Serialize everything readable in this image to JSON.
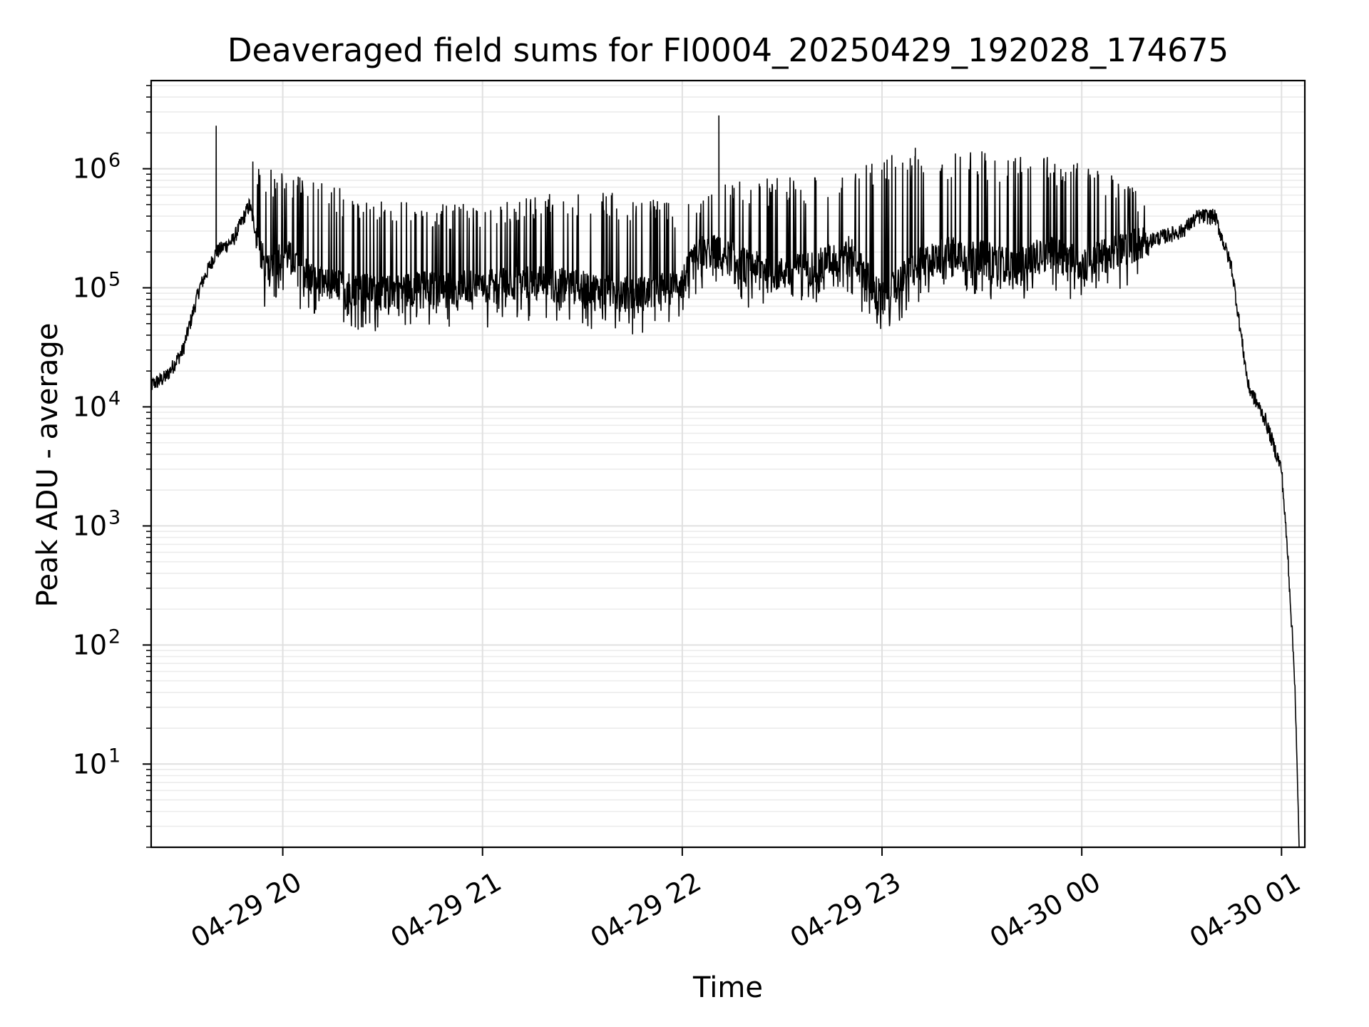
{
  "chart_data": {
    "type": "line",
    "title": "Deaveraged field sums for FI0004_20250429_192028_174675",
    "xlabel": "Time",
    "ylabel": "Peak ADU - average",
    "yscale": "log",
    "ylim": [
      2,
      5500000
    ],
    "xlim": [
      "04-29 19:20:28",
      "04-30 01:07:00"
    ],
    "grid": true,
    "grid_minor": true,
    "x_ticks": [
      "04-29 20",
      "04-29 21",
      "04-29 22",
      "04-29 23",
      "04-30 00",
      "04-30 01"
    ],
    "x_tick_times": [
      "04-29 20:00",
      "04-29 21:00",
      "04-29 22:00",
      "04-29 23:00",
      "04-30 00:00",
      "04-30 01:00"
    ],
    "y_ticks": [
      {
        "base": "10",
        "exp": "1",
        "value": 10
      },
      {
        "base": "10",
        "exp": "2",
        "value": 100
      },
      {
        "base": "10",
        "exp": "3",
        "value": 1000
      },
      {
        "base": "10",
        "exp": "4",
        "value": 10000
      },
      {
        "base": "10",
        "exp": "5",
        "value": 100000
      },
      {
        "base": "10",
        "exp": "6",
        "value": 1000000
      }
    ],
    "series": [
      {
        "color": "#000000",
        "x": [
          "04-29 19:20",
          "04-29 19:25",
          "04-29 19:30",
          "04-29 19:35",
          "04-29 19:40",
          "04-29 19:45",
          "04-29 19:50",
          "04-29 19:55",
          "04-29 20:00",
          "04-29 20:10",
          "04-29 20:20",
          "04-29 20:30",
          "04-29 20:40",
          "04-29 20:50",
          "04-29 21:00",
          "04-29 21:10",
          "04-29 21:20",
          "04-29 21:30",
          "04-29 21:40",
          "04-29 21:50",
          "04-29 22:00",
          "04-29 22:05",
          "04-29 22:10",
          "04-29 22:20",
          "04-29 22:30",
          "04-29 22:40",
          "04-29 22:50",
          "04-29 23:00",
          "04-29 23:10",
          "04-29 23:20",
          "04-29 23:30",
          "04-29 23:40",
          "04-29 23:50",
          "04-30 00:00",
          "04-30 00:10",
          "04-30 00:20",
          "04-30 00:30",
          "04-30 00:35",
          "04-30 00:40",
          "04-30 00:45",
          "04-30 00:50",
          "04-30 00:55",
          "04-30 01:00",
          "04-30 01:02",
          "04-30 01:04",
          "04-30 01:05"
        ],
        "y": [
          15000,
          18000,
          30000,
          100000,
          200000,
          250000,
          500000,
          130000,
          200000,
          110000,
          100000,
          90000,
          100000,
          100000,
          100000,
          110000,
          110000,
          100000,
          90000,
          90000,
          110000,
          200000,
          200000,
          150000,
          130000,
          150000,
          200000,
          80000,
          150000,
          200000,
          180000,
          150000,
          200000,
          160000,
          200000,
          250000,
          300000,
          400000,
          400000,
          150000,
          15000,
          8000,
          3000,
          500,
          50,
          4
        ]
      }
    ],
    "spikes": [
      {
        "x": "04-29 19:40",
        "y": 2300000
      },
      {
        "x": "04-29 19:51",
        "y": 1150000
      },
      {
        "x": "04-29 22:11",
        "y": 2800000
      },
      {
        "x": "04-29 23:10",
        "y": 1500000
      },
      {
        "x": "04-29 23:30",
        "y": 1400000
      }
    ],
    "noise_envelope": {
      "x": [
        "04-29 19:52",
        "04-29 20:30",
        "04-29 21:00",
        "04-29 21:30",
        "04-29 22:00",
        "04-29 22:15",
        "04-29 22:45",
        "04-29 23:00",
        "04-29 23:30",
        "04-30 00:00",
        "04-30 00:20"
      ],
      "upper": [
        1100000,
        550000,
        500000,
        700000,
        500000,
        800000,
        900000,
        1300000,
        1400000,
        1200000,
        600000
      ],
      "lower": [
        50000,
        50000,
        50000,
        50000,
        50000,
        50000,
        50000,
        50000,
        60000,
        70000,
        80000
      ]
    }
  }
}
